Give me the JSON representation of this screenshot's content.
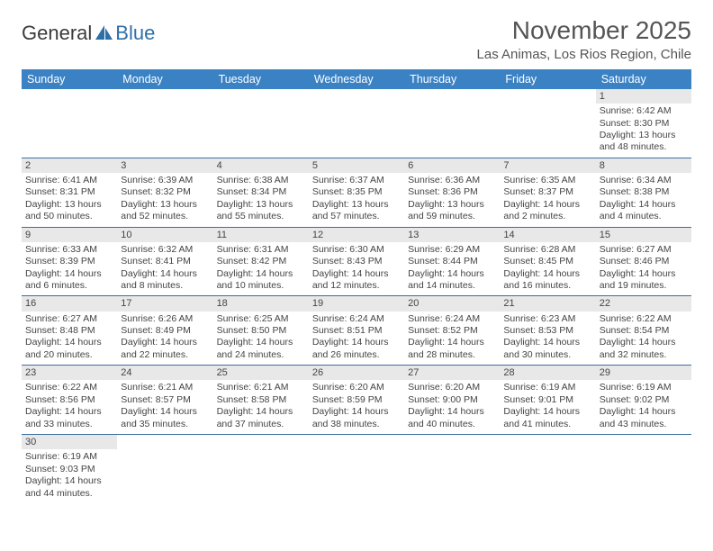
{
  "logo": {
    "part1": "General",
    "part2": "Blue"
  },
  "title": "November 2025",
  "location": "Las Animas, Los Rios Region, Chile",
  "colors": {
    "header_bg": "#3b82c4",
    "header_text": "#ffffff",
    "daynum_bg": "#e8e8e8",
    "border": "#3b6ea0",
    "text": "#444444",
    "logo_blue": "#2f6fa8"
  },
  "day_names": [
    "Sunday",
    "Monday",
    "Tuesday",
    "Wednesday",
    "Thursday",
    "Friday",
    "Saturday"
  ],
  "weeks": [
    [
      null,
      null,
      null,
      null,
      null,
      null,
      {
        "n": "1",
        "sunrise": "Sunrise: 6:42 AM",
        "sunset": "Sunset: 8:30 PM",
        "daylight": "Daylight: 13 hours and 48 minutes."
      }
    ],
    [
      {
        "n": "2",
        "sunrise": "Sunrise: 6:41 AM",
        "sunset": "Sunset: 8:31 PM",
        "daylight": "Daylight: 13 hours and 50 minutes."
      },
      {
        "n": "3",
        "sunrise": "Sunrise: 6:39 AM",
        "sunset": "Sunset: 8:32 PM",
        "daylight": "Daylight: 13 hours and 52 minutes."
      },
      {
        "n": "4",
        "sunrise": "Sunrise: 6:38 AM",
        "sunset": "Sunset: 8:34 PM",
        "daylight": "Daylight: 13 hours and 55 minutes."
      },
      {
        "n": "5",
        "sunrise": "Sunrise: 6:37 AM",
        "sunset": "Sunset: 8:35 PM",
        "daylight": "Daylight: 13 hours and 57 minutes."
      },
      {
        "n": "6",
        "sunrise": "Sunrise: 6:36 AM",
        "sunset": "Sunset: 8:36 PM",
        "daylight": "Daylight: 13 hours and 59 minutes."
      },
      {
        "n": "7",
        "sunrise": "Sunrise: 6:35 AM",
        "sunset": "Sunset: 8:37 PM",
        "daylight": "Daylight: 14 hours and 2 minutes."
      },
      {
        "n": "8",
        "sunrise": "Sunrise: 6:34 AM",
        "sunset": "Sunset: 8:38 PM",
        "daylight": "Daylight: 14 hours and 4 minutes."
      }
    ],
    [
      {
        "n": "9",
        "sunrise": "Sunrise: 6:33 AM",
        "sunset": "Sunset: 8:39 PM",
        "daylight": "Daylight: 14 hours and 6 minutes."
      },
      {
        "n": "10",
        "sunrise": "Sunrise: 6:32 AM",
        "sunset": "Sunset: 8:41 PM",
        "daylight": "Daylight: 14 hours and 8 minutes."
      },
      {
        "n": "11",
        "sunrise": "Sunrise: 6:31 AM",
        "sunset": "Sunset: 8:42 PM",
        "daylight": "Daylight: 14 hours and 10 minutes."
      },
      {
        "n": "12",
        "sunrise": "Sunrise: 6:30 AM",
        "sunset": "Sunset: 8:43 PM",
        "daylight": "Daylight: 14 hours and 12 minutes."
      },
      {
        "n": "13",
        "sunrise": "Sunrise: 6:29 AM",
        "sunset": "Sunset: 8:44 PM",
        "daylight": "Daylight: 14 hours and 14 minutes."
      },
      {
        "n": "14",
        "sunrise": "Sunrise: 6:28 AM",
        "sunset": "Sunset: 8:45 PM",
        "daylight": "Daylight: 14 hours and 16 minutes."
      },
      {
        "n": "15",
        "sunrise": "Sunrise: 6:27 AM",
        "sunset": "Sunset: 8:46 PM",
        "daylight": "Daylight: 14 hours and 19 minutes."
      }
    ],
    [
      {
        "n": "16",
        "sunrise": "Sunrise: 6:27 AM",
        "sunset": "Sunset: 8:48 PM",
        "daylight": "Daylight: 14 hours and 20 minutes."
      },
      {
        "n": "17",
        "sunrise": "Sunrise: 6:26 AM",
        "sunset": "Sunset: 8:49 PM",
        "daylight": "Daylight: 14 hours and 22 minutes."
      },
      {
        "n": "18",
        "sunrise": "Sunrise: 6:25 AM",
        "sunset": "Sunset: 8:50 PM",
        "daylight": "Daylight: 14 hours and 24 minutes."
      },
      {
        "n": "19",
        "sunrise": "Sunrise: 6:24 AM",
        "sunset": "Sunset: 8:51 PM",
        "daylight": "Daylight: 14 hours and 26 minutes."
      },
      {
        "n": "20",
        "sunrise": "Sunrise: 6:24 AM",
        "sunset": "Sunset: 8:52 PM",
        "daylight": "Daylight: 14 hours and 28 minutes."
      },
      {
        "n": "21",
        "sunrise": "Sunrise: 6:23 AM",
        "sunset": "Sunset: 8:53 PM",
        "daylight": "Daylight: 14 hours and 30 minutes."
      },
      {
        "n": "22",
        "sunrise": "Sunrise: 6:22 AM",
        "sunset": "Sunset: 8:54 PM",
        "daylight": "Daylight: 14 hours and 32 minutes."
      }
    ],
    [
      {
        "n": "23",
        "sunrise": "Sunrise: 6:22 AM",
        "sunset": "Sunset: 8:56 PM",
        "daylight": "Daylight: 14 hours and 33 minutes."
      },
      {
        "n": "24",
        "sunrise": "Sunrise: 6:21 AM",
        "sunset": "Sunset: 8:57 PM",
        "daylight": "Daylight: 14 hours and 35 minutes."
      },
      {
        "n": "25",
        "sunrise": "Sunrise: 6:21 AM",
        "sunset": "Sunset: 8:58 PM",
        "daylight": "Daylight: 14 hours and 37 minutes."
      },
      {
        "n": "26",
        "sunrise": "Sunrise: 6:20 AM",
        "sunset": "Sunset: 8:59 PM",
        "daylight": "Daylight: 14 hours and 38 minutes."
      },
      {
        "n": "27",
        "sunrise": "Sunrise: 6:20 AM",
        "sunset": "Sunset: 9:00 PM",
        "daylight": "Daylight: 14 hours and 40 minutes."
      },
      {
        "n": "28",
        "sunrise": "Sunrise: 6:19 AM",
        "sunset": "Sunset: 9:01 PM",
        "daylight": "Daylight: 14 hours and 41 minutes."
      },
      {
        "n": "29",
        "sunrise": "Sunrise: 6:19 AM",
        "sunset": "Sunset: 9:02 PM",
        "daylight": "Daylight: 14 hours and 43 minutes."
      }
    ],
    [
      {
        "n": "30",
        "sunrise": "Sunrise: 6:19 AM",
        "sunset": "Sunset: 9:03 PM",
        "daylight": "Daylight: 14 hours and 44 minutes."
      },
      null,
      null,
      null,
      null,
      null,
      null
    ]
  ]
}
